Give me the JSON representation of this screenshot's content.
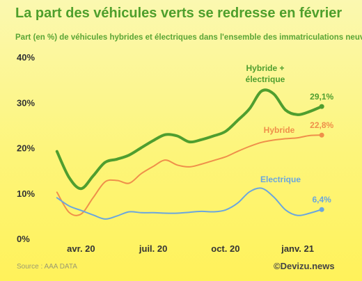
{
  "title": "La part des véhicules verts se redresse en février",
  "subtitle": "Part (en %) de véhicules hybrides et électriques dans l'ensemble des immatriculations neuves",
  "source": "Source : AAA DATA",
  "brand": "©Devizu.news",
  "chart_data": {
    "type": "line",
    "ylim": [
      0,
      40
    ],
    "yticks": [
      {
        "value": 0,
        "label": "0%"
      },
      {
        "value": 10,
        "label": "10%"
      },
      {
        "value": 20,
        "label": "20%"
      },
      {
        "value": 30,
        "label": "30%"
      },
      {
        "value": 40,
        "label": "40%"
      }
    ],
    "xticks": [
      "avr. 20",
      "juil. 20",
      "oct. 20",
      "janv. 21"
    ],
    "xtick_positions": [
      1,
      4,
      7,
      10
    ],
    "xlim": [
      -0.4,
      11.4
    ],
    "x": [
      0,
      0.5,
      1,
      1.5,
      2,
      2.5,
      3,
      3.5,
      4,
      4.5,
      5,
      5.5,
      6,
      6.5,
      7,
      7.5,
      8,
      8.5,
      9,
      9.5,
      10,
      10.5,
      11
    ],
    "grid": false,
    "series": [
      {
        "name": "Hybride + électrique",
        "label_lines": [
          "Hybride +",
          "électrique"
        ],
        "color": "#4f9e2f",
        "end_label": "29,1%",
        "values": [
          19.2,
          13.5,
          11.0,
          13.8,
          16.8,
          17.5,
          18.4,
          20.0,
          21.6,
          22.9,
          22.6,
          21.3,
          21.8,
          22.6,
          23.6,
          26.0,
          28.6,
          32.5,
          31.9,
          28.3,
          27.3,
          28.0,
          29.1
        ]
      },
      {
        "name": "Hybride",
        "label_lines": [
          "Hybride"
        ],
        "color": "#ef8f4a",
        "end_label": "22,8%",
        "values": [
          10.2,
          5.8,
          5.4,
          9.0,
          12.5,
          12.8,
          12.2,
          14.3,
          15.9,
          17.3,
          16.2,
          15.8,
          16.4,
          17.2,
          18.0,
          19.2,
          20.3,
          21.2,
          21.7,
          22.0,
          22.2,
          22.7,
          22.8
        ]
      },
      {
        "name": "Electrique",
        "label_lines": [
          "Electrique"
        ],
        "color": "#6aa6de",
        "end_label": "6,4%",
        "values": [
          9.0,
          7.2,
          6.2,
          5.2,
          4.3,
          5.0,
          5.9,
          5.7,
          5.7,
          5.6,
          5.6,
          5.8,
          6.0,
          5.9,
          6.3,
          7.8,
          10.3,
          11.1,
          9.2,
          6.3,
          5.1,
          5.6,
          6.4
        ]
      }
    ]
  }
}
